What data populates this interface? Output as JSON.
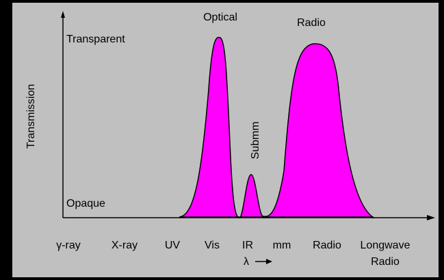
{
  "y_axis": {
    "label": "Transmission",
    "top": "Transparent",
    "bottom": "Opaque"
  },
  "annotations": {
    "optical": "Optical",
    "radio": "Radio",
    "submm": "Submm"
  },
  "x_axis": {
    "categories": [
      "γ-ray",
      "X-ray",
      "UV",
      "Vis",
      "IR",
      "mm",
      "Radio",
      [
        "Longwave",
        "Radio"
      ]
    ],
    "symbol": "λ"
  }
}
